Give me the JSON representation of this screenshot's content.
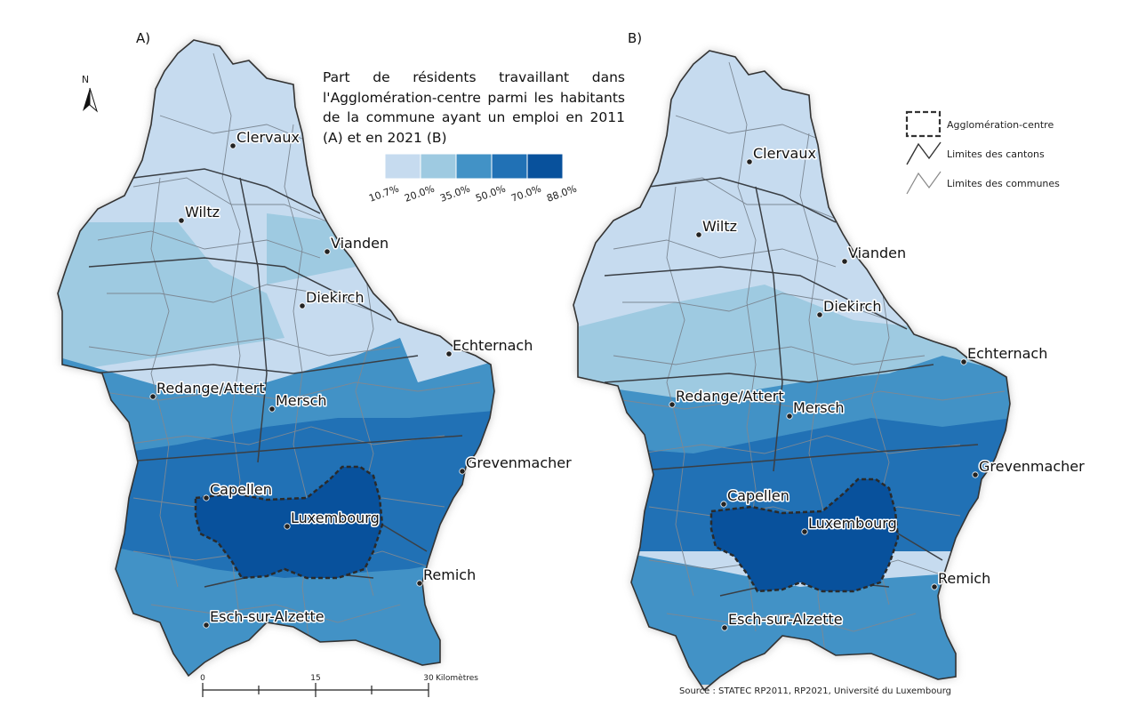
{
  "panels": [
    {
      "label": "A)",
      "cities": [
        {
          "name": "Clervaux"
        },
        {
          "name": "Wiltz"
        },
        {
          "name": "Vianden"
        },
        {
          "name": "Diekirch"
        },
        {
          "name": "Echternach"
        },
        {
          "name": "Redange/Attert"
        },
        {
          "name": "Mersch"
        },
        {
          "name": "Grevenmacher"
        },
        {
          "name": "Capellen"
        },
        {
          "name": "Luxembourg"
        },
        {
          "name": "Remich"
        },
        {
          "name": "Esch-sur-Alzette"
        }
      ]
    },
    {
      "label": "B)",
      "cities": [
        {
          "name": "Clervaux"
        },
        {
          "name": "Wiltz"
        },
        {
          "name": "Vianden"
        },
        {
          "name": "Diekirch"
        },
        {
          "name": "Echternach"
        },
        {
          "name": "Redange/Attert"
        },
        {
          "name": "Mersch"
        },
        {
          "name": "Grevenmacher"
        },
        {
          "name": "Capellen"
        },
        {
          "name": "Luxembourg"
        },
        {
          "name": "Remich"
        },
        {
          "name": "Esch-sur-Alzette"
        }
      ]
    }
  ],
  "legend": {
    "title": "Part de résidents travaillant dans l'Agglomération-centre parmi les habitants de la commune ayant un emploi en 2011 (A) et en 2021 (B)",
    "classes": [
      {
        "color": "#c6dbef"
      },
      {
        "color": "#9ecae1"
      },
      {
        "color": "#4292c6"
      },
      {
        "color": "#2171b5"
      },
      {
        "color": "#08519c"
      }
    ],
    "breaks": [
      "10.7%",
      "20.0%",
      "35.0%",
      "50.0%",
      "70.0%",
      "88.0%"
    ]
  },
  "boundary_legend": {
    "items": [
      {
        "label": "Agglomération-centre",
        "icon": "dashed-box-icon"
      },
      {
        "label": "Limites des cantons",
        "icon": "canton-line-icon"
      },
      {
        "label": "Limites des communes",
        "icon": "commune-line-icon"
      }
    ]
  },
  "north_arrow": {
    "label": "N"
  },
  "scale_bar": {
    "ticks": [
      "0",
      "15",
      "30"
    ],
    "unit": "Kilomètres"
  },
  "source": "Source : STATEC RP2011, RP2021, Université du Luxembourg",
  "colors": {
    "cls1": "#c6dbef",
    "cls2": "#9ecae1",
    "cls3": "#4292c6",
    "cls4": "#2171b5",
    "cls5": "#08519c",
    "border": "#5b6a78",
    "halo": "#bdbdbd"
  }
}
